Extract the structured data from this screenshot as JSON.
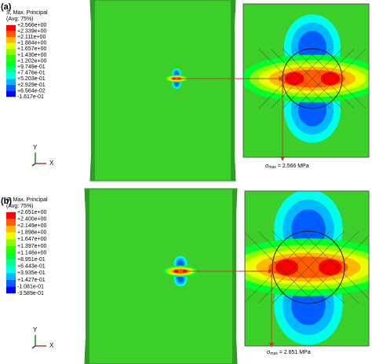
{
  "legend_colors": [
    "#ff0000",
    "#ff5d00",
    "#ffb900",
    "#e8ff00",
    "#8bff00",
    "#2eff00",
    "#00ff2e",
    "#00ff8b",
    "#00ffe8",
    "#00b9ff",
    "#005dff",
    "#0000ff"
  ],
  "panels": [
    {
      "label": "(a)",
      "legend": {
        "title": "S, Max. Principal",
        "subtitle": "(Avg: 75%)",
        "values": [
          "+2.566e+00",
          "+2.339e+00",
          "+2.111e+00",
          "+1.884e+00",
          "+1.657e+00",
          "+1.430e+00",
          "+1.202e+00",
          "+9.749e-01",
          "+7.476e-01",
          "+5.203e-01",
          "+2.929e-01",
          "+6.564e-02",
          "-1.617e-01"
        ]
      },
      "axes": {
        "y": "Y",
        "x": "X"
      },
      "annotation": {
        "symbol": "σ",
        "subscript": "max",
        "text": " = 2.566 MPa"
      }
    },
    {
      "label": "(b)",
      "legend": {
        "title": "S, Max. Principal",
        "subtitle": "(Avg: 75%)",
        "values": [
          "+2.651e+00",
          "+2.400e+00",
          "+2.149e+00",
          "+1.898e+00",
          "+1.647e+00",
          "+1.397e+00",
          "+1.146e+00",
          "+8.951e-01",
          "+6.443e-01",
          "+3.935e-01",
          "+1.427e-01",
          "-1.081e-01",
          "-3.589e-01"
        ]
      },
      "axes": {
        "y": "Y",
        "x": "X"
      },
      "annotation": {
        "symbol": "σ",
        "subscript": "max",
        "text": " = 2.651 MPa"
      }
    }
  ]
}
